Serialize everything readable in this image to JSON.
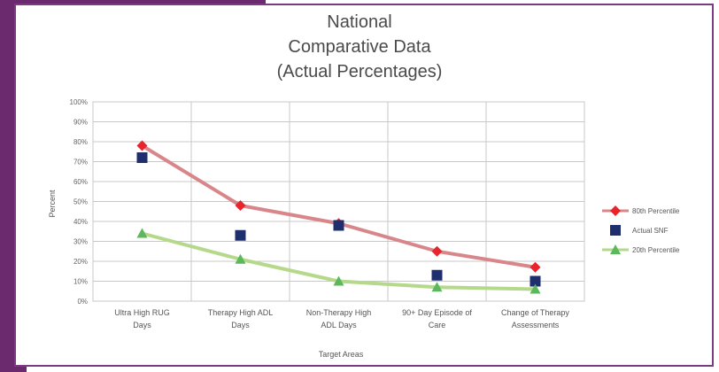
{
  "chart_data": {
    "type": "line",
    "title_lines": [
      "National",
      "Comparative Data",
      "(Actual Percentages)"
    ],
    "xlabel": "Target Areas",
    "ylabel": "Percent",
    "ylim": [
      0,
      100
    ],
    "yticks": [
      "0%",
      "10%",
      "20%",
      "30%",
      "40%",
      "50%",
      "60%",
      "70%",
      "80%",
      "90%",
      "100%"
    ],
    "categories": [
      [
        "Ultra High RUG",
        "Days"
      ],
      [
        "Therapy High ADL",
        "Days"
      ],
      [
        "Non-Therapy High",
        "ADL Days"
      ],
      [
        "90+ Day Episode of",
        "Care"
      ],
      [
        "Change of Therapy",
        "Assessments"
      ]
    ],
    "grid": true,
    "legend_position": "right",
    "series": [
      {
        "name": "80th Percentile",
        "values": [
          78,
          48,
          39,
          25,
          17
        ],
        "line_color": "#d9868a",
        "marker": "diamond",
        "marker_color": "#e8242c",
        "line": true
      },
      {
        "name": "Actual SNF",
        "values": [
          72,
          33,
          38,
          13,
          10
        ],
        "marker": "square",
        "marker_color": "#1f2f6e",
        "line": false
      },
      {
        "name": "20th Percentile",
        "values": [
          34,
          21,
          10,
          7,
          6
        ],
        "line_color": "#b5d98a",
        "marker": "triangle",
        "marker_color": "#5cb85c",
        "line": true
      }
    ]
  }
}
